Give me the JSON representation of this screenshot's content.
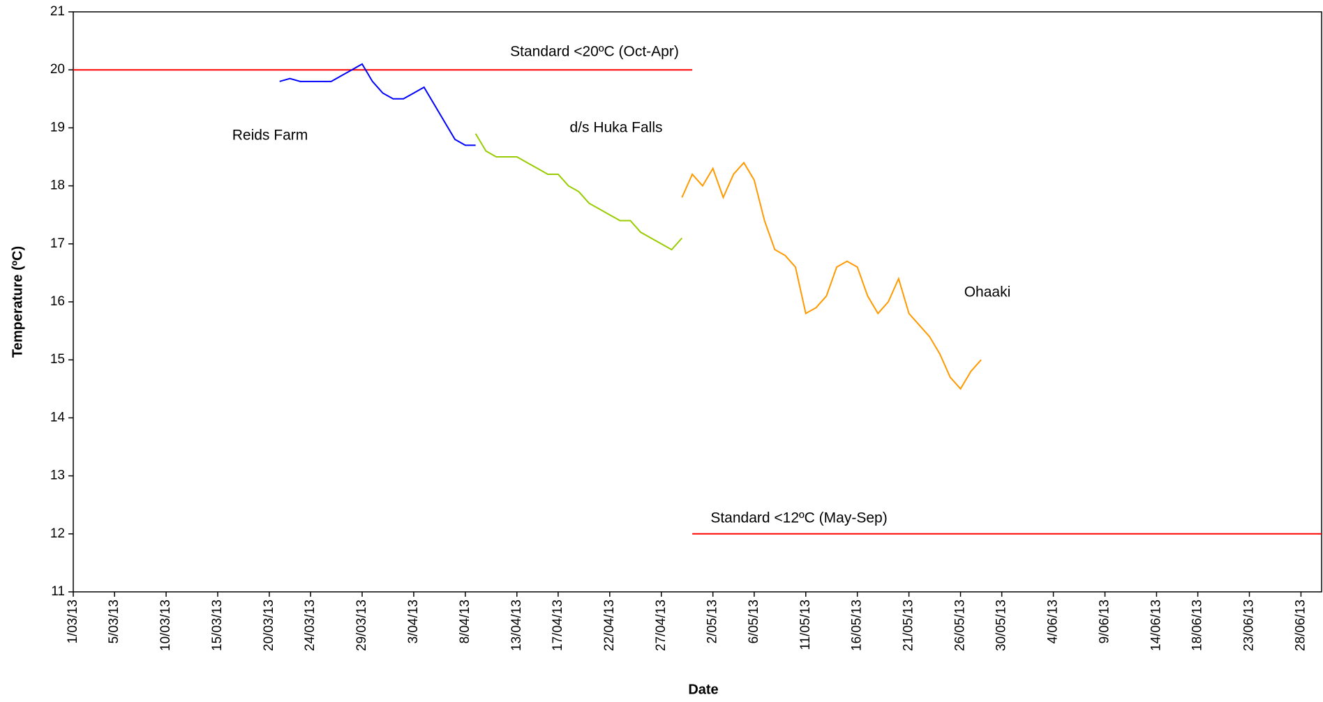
{
  "chart_data": {
    "type": "line",
    "x_label": "Date",
    "y_label": "Temperature (ºC)",
    "xlim": [
      "2013-03-01",
      "2013-06-30"
    ],
    "xticks": [
      {
        "value": "2013-03-01",
        "label": "1/03/13"
      },
      {
        "value": "2013-03-05",
        "label": "5/03/13"
      },
      {
        "value": "2013-03-10",
        "label": "10/03/13"
      },
      {
        "value": "2013-03-15",
        "label": "15/03/13"
      },
      {
        "value": "2013-03-20",
        "label": "20/03/13"
      },
      {
        "value": "2013-03-24",
        "label": "24/03/13"
      },
      {
        "value": "2013-03-29",
        "label": "29/03/13"
      },
      {
        "value": "2013-04-03",
        "label": "3/04/13"
      },
      {
        "value": "2013-04-08",
        "label": "8/04/13"
      },
      {
        "value": "2013-04-13",
        "label": "13/04/13"
      },
      {
        "value": "2013-04-17",
        "label": "17/04/13"
      },
      {
        "value": "2013-04-22",
        "label": "22/04/13"
      },
      {
        "value": "2013-04-27",
        "label": "27/04/13"
      },
      {
        "value": "2013-05-02",
        "label": "2/05/13"
      },
      {
        "value": "2013-05-06",
        "label": "6/05/13"
      },
      {
        "value": "2013-05-11",
        "label": "11/05/13"
      },
      {
        "value": "2013-05-16",
        "label": "16/05/13"
      },
      {
        "value": "2013-05-21",
        "label": "21/05/13"
      },
      {
        "value": "2013-05-26",
        "label": "26/05/13"
      },
      {
        "value": "2013-05-30",
        "label": "30/05/13"
      },
      {
        "value": "2013-06-04",
        "label": "4/06/13"
      },
      {
        "value": "2013-06-09",
        "label": "9/06/13"
      },
      {
        "value": "2013-06-14",
        "label": "14/06/13"
      },
      {
        "value": "2013-06-18",
        "label": "18/06/13"
      },
      {
        "value": "2013-06-23",
        "label": "23/06/13"
      },
      {
        "value": "2013-06-28",
        "label": "28/06/13"
      }
    ],
    "ylim": [
      11,
      21
    ],
    "yticks": [
      11,
      12,
      13,
      14,
      15,
      16,
      17,
      18,
      19,
      20,
      21
    ],
    "grid": false,
    "series": [
      {
        "name": "Reids Farm",
        "color": "#0000ff",
        "x": [
          "2013-03-21",
          "2013-03-22",
          "2013-03-23",
          "2013-03-24",
          "2013-03-25",
          "2013-03-26",
          "2013-03-27",
          "2013-03-28",
          "2013-03-29",
          "2013-03-30",
          "2013-03-31",
          "2013-04-01",
          "2013-04-02",
          "2013-04-03",
          "2013-04-04",
          "2013-04-05",
          "2013-04-06",
          "2013-04-07",
          "2013-04-08",
          "2013-04-09"
        ],
        "values": [
          19.8,
          19.85,
          19.8,
          19.8,
          19.8,
          19.8,
          19.9,
          20.0,
          20.1,
          19.8,
          19.6,
          19.5,
          19.5,
          19.6,
          19.7,
          19.4,
          19.1,
          18.8,
          18.7,
          18.7
        ]
      },
      {
        "name": "d/s Huka Falls",
        "color": "#99cc00",
        "x": [
          "2013-04-09",
          "2013-04-10",
          "2013-04-11",
          "2013-04-12",
          "2013-04-13",
          "2013-04-14",
          "2013-04-15",
          "2013-04-16",
          "2013-04-17",
          "2013-04-18",
          "2013-04-19",
          "2013-04-20",
          "2013-04-21",
          "2013-04-22",
          "2013-04-23",
          "2013-04-24",
          "2013-04-25",
          "2013-04-26",
          "2013-04-27",
          "2013-04-28",
          "2013-04-29"
        ],
        "values": [
          18.9,
          18.6,
          18.5,
          18.5,
          18.5,
          18.4,
          18.3,
          18.2,
          18.2,
          18.0,
          17.9,
          17.7,
          17.6,
          17.5,
          17.4,
          17.4,
          17.2,
          17.1,
          17.0,
          16.9,
          17.1
        ]
      },
      {
        "name": "Ohaaki",
        "color": "#ff9900",
        "x": [
          "2013-04-29",
          "2013-04-30",
          "2013-05-01",
          "2013-05-02",
          "2013-05-03",
          "2013-05-04",
          "2013-05-05",
          "2013-05-06",
          "2013-05-07",
          "2013-05-08",
          "2013-05-09",
          "2013-05-10",
          "2013-05-11",
          "2013-05-12",
          "2013-05-13",
          "2013-05-14",
          "2013-05-15",
          "2013-05-16",
          "2013-05-17",
          "2013-05-18",
          "2013-05-19",
          "2013-05-20",
          "2013-05-21",
          "2013-05-22",
          "2013-05-23",
          "2013-05-24",
          "2013-05-25",
          "2013-05-26",
          "2013-05-27",
          "2013-05-28"
        ],
        "values": [
          17.8,
          18.2,
          18.0,
          18.3,
          17.8,
          18.2,
          18.4,
          18.1,
          17.4,
          16.9,
          16.8,
          16.6,
          15.8,
          15.9,
          16.1,
          16.6,
          16.7,
          16.6,
          16.1,
          15.8,
          16.0,
          16.4,
          15.8,
          15.6,
          15.4,
          15.1,
          14.7,
          14.5,
          14.8,
          15.0
        ]
      }
    ],
    "reference_lines": [
      {
        "label": "Standard <20ºC (Oct-Apr)",
        "value": 20,
        "x": [
          "2013-03-01",
          "2013-04-30"
        ],
        "color": "#ff0000"
      },
      {
        "label": "Standard <12ºC (May-Sep)",
        "value": 12,
        "x": [
          "2013-04-30",
          "2013-06-30"
        ],
        "color": "#ff0000"
      }
    ]
  }
}
